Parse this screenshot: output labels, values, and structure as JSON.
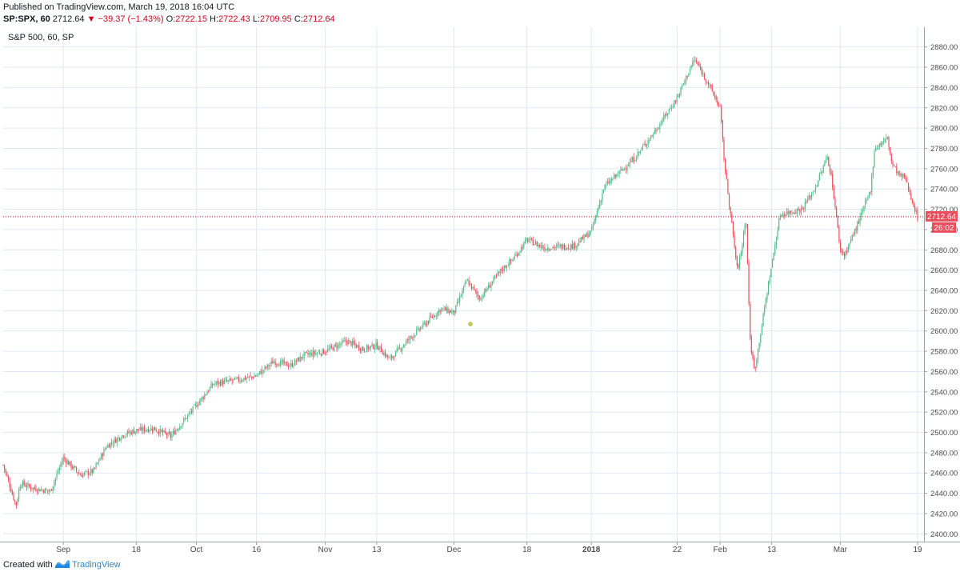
{
  "header": {
    "published": "Published on TradingView.com, March 19, 2018 16:04 UTC",
    "symbol": "SP:SPX, 60",
    "last": "2712.64",
    "arrow": "▼",
    "change": "−39.37 (−1.43%)",
    "open_label": "O:",
    "open": "2722.15",
    "high_label": "H:",
    "high": "2722.43",
    "low_label": "L:",
    "low": "2709.95",
    "close_label": "C:",
    "close": "2712.64"
  },
  "chart_label": "S&P 500, 60, SP",
  "price_tag": "2712.64",
  "countdown_tag": "26:02",
  "footer": {
    "created": "Created with",
    "brand": "TradingView"
  },
  "colors": {
    "up": "#53b987",
    "down": "#eb4d5c",
    "grid": "#dfe9f5",
    "axis": "#5d606b",
    "price_line": "#d0021b"
  },
  "chart_data": {
    "type": "candlestick",
    "title": "S&P 500, 60, SP",
    "ylim": [
      2390,
      2890
    ],
    "y_ticks": [
      2400,
      2420,
      2440,
      2460,
      2480,
      2500,
      2520,
      2540,
      2560,
      2580,
      2600,
      2620,
      2640,
      2660,
      2680,
      2700,
      2720,
      2740,
      2760,
      2780,
      2800,
      2820,
      2840,
      2860,
      2880
    ],
    "x_range": [
      "2017-08-18",
      "2018-03-19"
    ],
    "x_ticks": [
      {
        "date": "2017-09-01",
        "label": "Sep"
      },
      {
        "date": "2017-09-18",
        "label": "18"
      },
      {
        "date": "2017-10-02",
        "label": "Oct"
      },
      {
        "date": "2017-10-16",
        "label": "16"
      },
      {
        "date": "2017-11-01",
        "label": "Nov"
      },
      {
        "date": "2017-11-13",
        "label": "13"
      },
      {
        "date": "2017-12-01",
        "label": "Dec"
      },
      {
        "date": "2017-12-18",
        "label": "18"
      },
      {
        "date": "2018-01-02",
        "label": "2018"
      },
      {
        "date": "2018-01-22",
        "label": "22"
      },
      {
        "date": "2018-02-01",
        "label": "Feb"
      },
      {
        "date": "2018-02-13",
        "label": "13"
      },
      {
        "date": "2018-03-01",
        "label": "Mar"
      },
      {
        "date": "2018-03-19",
        "label": "19"
      }
    ],
    "price_path": [
      [
        "2017-08-18",
        2468
      ],
      [
        "2017-08-21",
        2428
      ],
      [
        "2017-08-22",
        2450
      ],
      [
        "2017-08-25",
        2445
      ],
      [
        "2017-08-29",
        2442
      ],
      [
        "2017-09-01",
        2475
      ],
      [
        "2017-09-05",
        2458
      ],
      [
        "2017-09-08",
        2462
      ],
      [
        "2017-09-11",
        2486
      ],
      [
        "2017-09-15",
        2498
      ],
      [
        "2017-09-18",
        2502
      ],
      [
        "2017-09-22",
        2504
      ],
      [
        "2017-09-26",
        2496
      ],
      [
        "2017-10-02",
        2527
      ],
      [
        "2017-10-06",
        2548
      ],
      [
        "2017-10-12",
        2552
      ],
      [
        "2017-10-16",
        2556
      ],
      [
        "2017-10-20",
        2570
      ],
      [
        "2017-10-24",
        2566
      ],
      [
        "2017-10-27",
        2576
      ],
      [
        "2017-11-01",
        2580
      ],
      [
        "2017-11-06",
        2590
      ],
      [
        "2017-11-10",
        2582
      ],
      [
        "2017-11-13",
        2586
      ],
      [
        "2017-11-16",
        2572
      ],
      [
        "2017-11-21",
        2594
      ],
      [
        "2017-11-28",
        2622
      ],
      [
        "2017-12-01",
        2618
      ],
      [
        "2017-12-04",
        2650
      ],
      [
        "2017-12-07",
        2632
      ],
      [
        "2017-12-12",
        2660
      ],
      [
        "2017-12-15",
        2672
      ],
      [
        "2017-12-18",
        2690
      ],
      [
        "2017-12-22",
        2682
      ],
      [
        "2017-12-29",
        2684
      ],
      [
        "2018-01-02",
        2698
      ],
      [
        "2018-01-05",
        2742
      ],
      [
        "2018-01-12",
        2770
      ],
      [
        "2018-01-17",
        2798
      ],
      [
        "2018-01-22",
        2830
      ],
      [
        "2018-01-26",
        2868
      ],
      [
        "2018-01-29",
        2846
      ],
      [
        "2018-02-01",
        2820
      ],
      [
        "2018-02-02",
        2765
      ],
      [
        "2018-02-05",
        2660
      ],
      [
        "2018-02-06",
        2680
      ],
      [
        "2018-02-07",
        2715
      ],
      [
        "2018-02-08",
        2590
      ],
      [
        "2018-02-09",
        2560
      ],
      [
        "2018-02-12",
        2640
      ],
      [
        "2018-02-15",
        2715
      ],
      [
        "2018-02-20",
        2720
      ],
      [
        "2018-02-23",
        2740
      ],
      [
        "2018-02-26",
        2772
      ],
      [
        "2018-02-27",
        2750
      ],
      [
        "2018-03-01",
        2680
      ],
      [
        "2018-03-02",
        2675
      ],
      [
        "2018-03-05",
        2705
      ],
      [
        "2018-03-08",
        2738
      ],
      [
        "2018-03-09",
        2780
      ],
      [
        "2018-03-12",
        2790
      ],
      [
        "2018-03-13",
        2765
      ],
      [
        "2018-03-15",
        2752
      ],
      [
        "2018-03-16",
        2752
      ],
      [
        "2018-03-19",
        2712
      ]
    ],
    "last_price": 2712.64
  }
}
